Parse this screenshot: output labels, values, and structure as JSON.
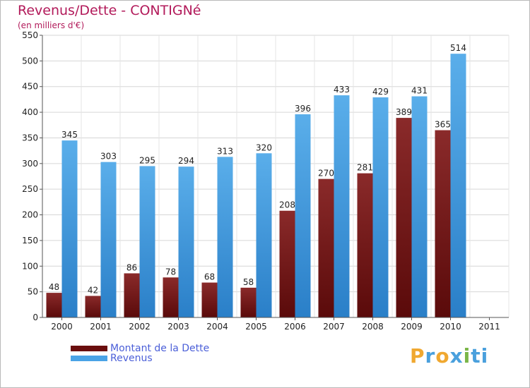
{
  "chart_data": {
    "type": "bar",
    "title": "Revenus/Dette - CONTIGNé",
    "subtitle": "(en milliers d'€)",
    "categories": [
      "2000",
      "2001",
      "2002",
      "2003",
      "2004",
      "2005",
      "2006",
      "2007",
      "2008",
      "2009",
      "2010",
      "2011"
    ],
    "series": [
      {
        "name": "Montant de la Dette",
        "color": "#7a1a1a",
        "values": [
          48,
          42,
          86,
          78,
          68,
          58,
          208,
          270,
          281,
          389,
          365,
          null
        ]
      },
      {
        "name": "Revenus",
        "color": "#4aa3e6",
        "values": [
          345,
          303,
          295,
          294,
          313,
          320,
          396,
          433,
          429,
          431,
          514,
          null
        ]
      }
    ],
    "yticks": [
      0,
      50,
      100,
      150,
      200,
      250,
      300,
      350,
      400,
      450,
      500,
      550
    ],
    "ylim": [
      0,
      550
    ],
    "grid": true,
    "legend_position": "bottom-left"
  },
  "legend": {
    "debt_label": "Montant de la Dette",
    "revenue_label": "Revenus"
  },
  "logo": {
    "letters": [
      "P",
      "r",
      "o",
      "x",
      "i",
      "ti"
    ]
  }
}
